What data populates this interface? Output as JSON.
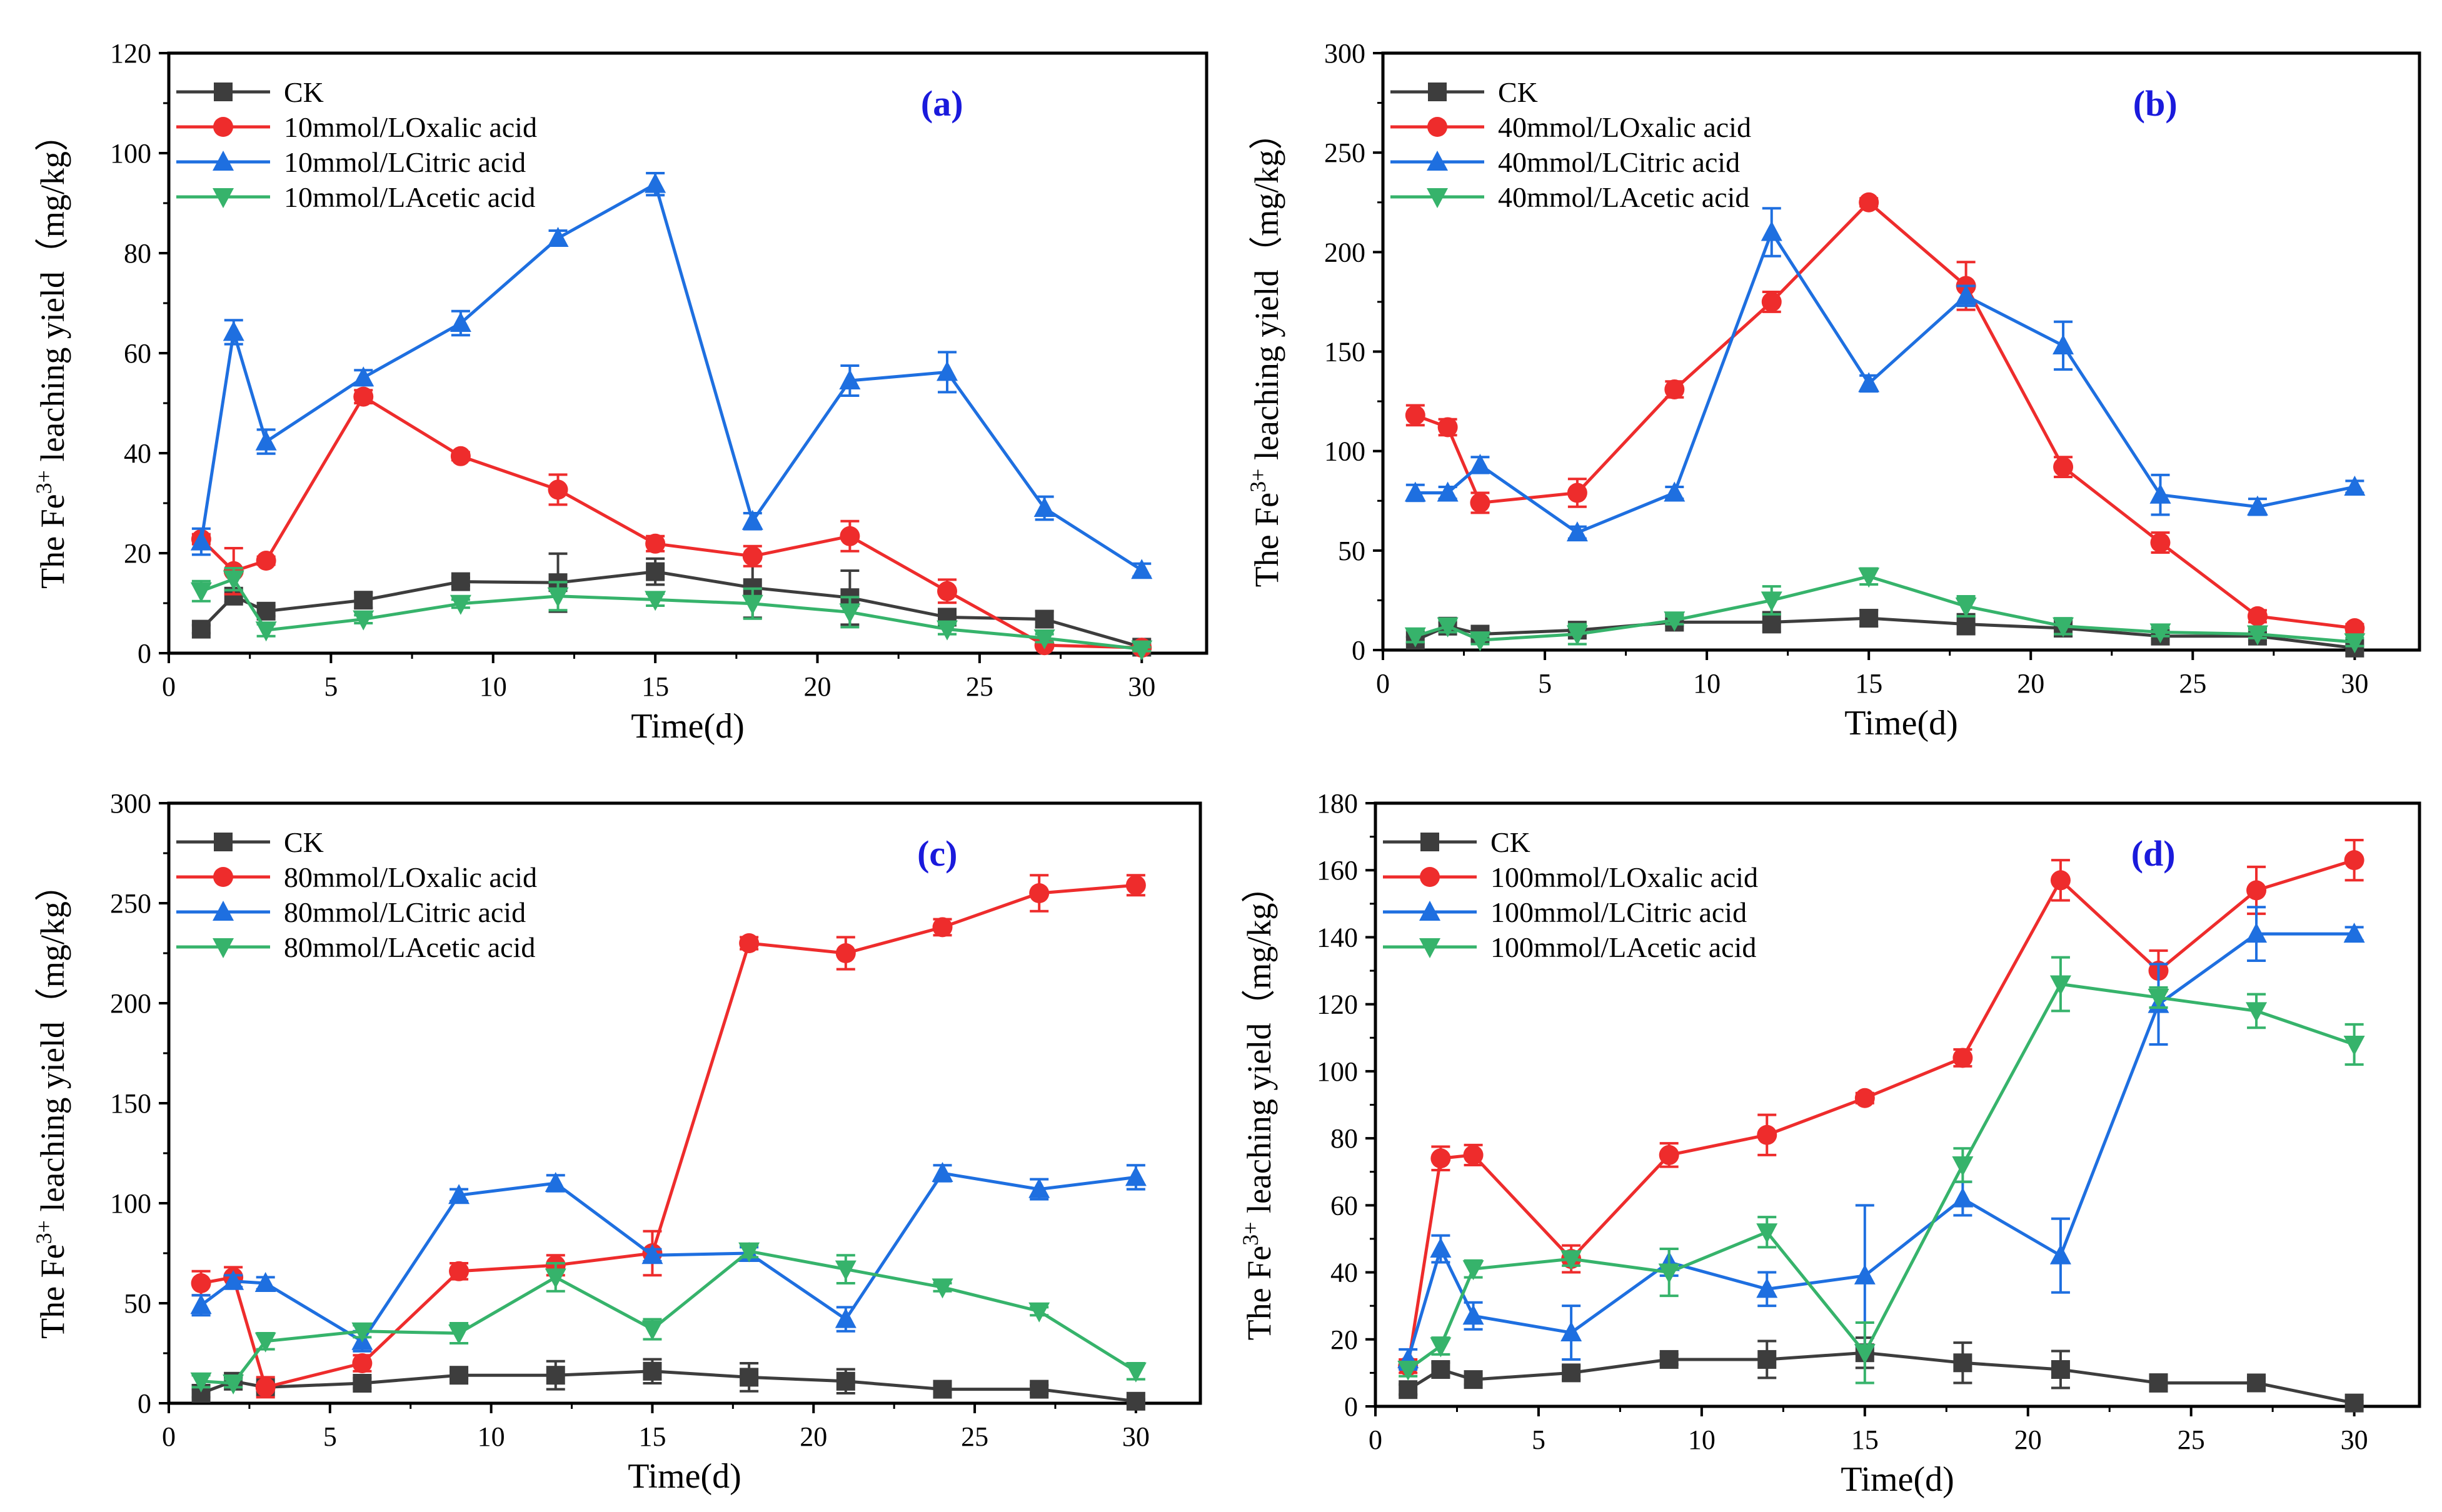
{
  "chart_data": [
    {
      "type": "line",
      "panel_label": "(a)",
      "xlabel": "Time(d)",
      "ylabel": "The Fe",
      "ylabel_sup": "3+",
      "ylabel_tail": " leaching yield（mg/kg）",
      "xlim": [
        0,
        32
      ],
      "ylim": [
        0,
        120
      ],
      "xticks": [
        0,
        5,
        10,
        15,
        20,
        25,
        30
      ],
      "yticks": [
        0,
        20,
        40,
        60,
        80,
        100,
        120
      ],
      "legend_position": "top-left",
      "series": [
        {
          "name": "CK",
          "color": "#3d3d3d",
          "marker": "square",
          "x": [
            1,
            2,
            3,
            6,
            9,
            12,
            15,
            18,
            21,
            24,
            27,
            30
          ],
          "y": [
            4.8,
            11.4,
            8.4,
            10.6,
            14.3,
            14.1,
            16.3,
            13.1,
            11.1,
            7.2,
            6.8,
            1.2
          ],
          "err": [
            0.8,
            1.2,
            1.0,
            1.5,
            0.8,
            5.8,
            2.6,
            6.0,
            5.4,
            1.3,
            1.6,
            0.5
          ]
        },
        {
          "name": "10mmol/LOxalic acid",
          "color": "#ee2c2c",
          "marker": "circle",
          "x": [
            1,
            2,
            3,
            6,
            9,
            12,
            15,
            18,
            21,
            24,
            27,
            30
          ],
          "y": [
            22.8,
            16.4,
            18.5,
            51.3,
            39.4,
            32.7,
            21.9,
            19.4,
            23.4,
            12.4,
            1.6,
            1.1
          ],
          "err": [
            1.0,
            4.6,
            0.8,
            1.3,
            0.8,
            3.0,
            1.5,
            2.0,
            3.0,
            2.3,
            0.5,
            0.4
          ]
        },
        {
          "name": "10mmol/LCitric acid",
          "color": "#1e6fe0",
          "marker": "triangle-up",
          "x": [
            1,
            2,
            3,
            6,
            9,
            12,
            15,
            18,
            21,
            24,
            27,
            30
          ],
          "y": [
            22.3,
            64.2,
            42.3,
            55.1,
            66.0,
            83.0,
            93.8,
            26.4,
            54.5,
            56.2,
            29.0,
            16.6
          ],
          "err": [
            2.6,
            2.4,
            2.4,
            1.5,
            2.4,
            1.5,
            2.2,
            1.6,
            3.0,
            4.0,
            2.3,
            1.3
          ]
        },
        {
          "name": "10mmol/LAcetic acid",
          "color": "#36b36b",
          "marker": "triangle-down",
          "x": [
            1,
            2,
            3,
            6,
            9,
            12,
            15,
            18,
            21,
            24,
            27,
            30
          ],
          "y": [
            12.4,
            14.8,
            4.6,
            6.8,
            9.9,
            11.4,
            10.7,
            9.9,
            8.2,
            4.8,
            3.0,
            0.8
          ],
          "err": [
            2.0,
            2.2,
            1.2,
            0.8,
            0.8,
            2.8,
            1.2,
            3.0,
            3.0,
            1.0,
            0.8,
            0.4
          ]
        }
      ]
    },
    {
      "type": "line",
      "panel_label": "(b)",
      "xlabel": "Time(d)",
      "ylabel": "The Fe",
      "ylabel_sup": "3+",
      "ylabel_tail": " leaching yield（mg/kg）",
      "xlim": [
        0,
        32
      ],
      "ylim": [
        0,
        300
      ],
      "xticks": [
        0,
        5,
        10,
        15,
        20,
        25,
        30
      ],
      "yticks": [
        0,
        50,
        100,
        150,
        200,
        250,
        300
      ],
      "legend_position": "top-left",
      "series": [
        {
          "name": "CK",
          "color": "#3d3d3d",
          "marker": "square",
          "x": [
            1,
            2,
            3,
            6,
            9,
            12,
            15,
            18,
            21,
            24,
            27,
            30
          ],
          "y": [
            5.0,
            12.0,
            8.0,
            10.0,
            14.0,
            14.0,
            16.0,
            13.0,
            11.0,
            7.0,
            7.0,
            1.0
          ],
          "err": [
            1.5,
            2.0,
            1.5,
            2.0,
            1.5,
            5.0,
            4.0,
            5.0,
            4.0,
            2.0,
            2.0,
            1.0
          ]
        },
        {
          "name": "40mmol/LOxalic acid",
          "color": "#ee2c2c",
          "marker": "circle",
          "x": [
            1,
            2,
            3,
            6,
            9,
            12,
            15,
            18,
            21,
            24,
            27,
            30
          ],
          "y": [
            118.0,
            112.0,
            74.0,
            79.0,
            131.0,
            175.0,
            225.0,
            183.0,
            92.0,
            54.0,
            17.0,
            11.0
          ],
          "err": [
            5.0,
            4.0,
            5.0,
            7.0,
            4.0,
            5.0,
            2.0,
            12.0,
            5.0,
            5.0,
            3.0,
            2.0
          ]
        },
        {
          "name": "40mmol/LCitric acid",
          "color": "#1e6fe0",
          "marker": "triangle-up",
          "x": [
            1,
            2,
            3,
            6,
            9,
            12,
            15,
            18,
            21,
            24,
            27,
            30
          ],
          "y": [
            79.0,
            79.0,
            93.0,
            59.0,
            79.0,
            210.0,
            134.0,
            178.0,
            153.0,
            78.0,
            72.0,
            82.0
          ],
          "err": [
            4.0,
            3.0,
            4.0,
            3.0,
            3.0,
            12.0,
            4.0,
            5.0,
            12.0,
            10.0,
            4.0,
            3.0
          ]
        },
        {
          "name": "40mmol/LAcetic acid",
          "color": "#36b36b",
          "marker": "triangle-down",
          "x": [
            1,
            2,
            3,
            6,
            9,
            12,
            15,
            18,
            21,
            24,
            27,
            30
          ],
          "y": [
            7.0,
            12.0,
            5.0,
            8.0,
            15.0,
            25.0,
            37.0,
            22.0,
            12.0,
            9.0,
            8.0,
            4.0
          ],
          "err": [
            3.0,
            3.0,
            2.0,
            5.0,
            2.0,
            7.0,
            4.0,
            5.0,
            4.0,
            2.0,
            2.0,
            2.0
          ]
        }
      ]
    },
    {
      "type": "line",
      "panel_label": "(c)",
      "xlabel": "Time(d)",
      "ylabel": "The Fe",
      "ylabel_sup": "3+",
      "ylabel_tail": " leaching yield（mg/kg）",
      "xlim": [
        0,
        32
      ],
      "ylim": [
        0,
        300
      ],
      "xticks": [
        0,
        5,
        10,
        15,
        20,
        25,
        30
      ],
      "yticks": [
        0,
        50,
        100,
        150,
        200,
        250,
        300
      ],
      "legend_position": "top-left",
      "series": [
        {
          "name": "CK",
          "color": "#3d3d3d",
          "marker": "square",
          "x": [
            1,
            2,
            3,
            6,
            9,
            12,
            15,
            18,
            21,
            24,
            27,
            30
          ],
          "y": [
            5.0,
            11.0,
            8.0,
            10.0,
            14.0,
            14.0,
            16.0,
            13.0,
            11.0,
            7.0,
            7.0,
            1.0
          ],
          "err": [
            2.0,
            2.0,
            2.0,
            2.5,
            2.0,
            7.0,
            6.0,
            7.0,
            6.0,
            2.5,
            2.0,
            1.0
          ]
        },
        {
          "name": "80mmol/LOxalic acid",
          "color": "#ee2c2c",
          "marker": "circle",
          "x": [
            1,
            2,
            3,
            6,
            9,
            12,
            15,
            18,
            21,
            24,
            27,
            30
          ],
          "y": [
            60.0,
            63.0,
            8.0,
            20.0,
            66.0,
            69.0,
            75.0,
            230.0,
            225.0,
            238.0,
            255.0,
            259.0
          ],
          "err": [
            6.0,
            5.0,
            5.0,
            4.0,
            4.0,
            5.0,
            11.0,
            3.0,
            8.0,
            4.0,
            9.0,
            5.0
          ]
        },
        {
          "name": "80mmol/LCitric acid",
          "color": "#1e6fe0",
          "marker": "triangle-up",
          "x": [
            1,
            2,
            3,
            6,
            9,
            12,
            15,
            18,
            21,
            24,
            27,
            30
          ],
          "y": [
            49.0,
            61.0,
            60.0,
            31.0,
            104.0,
            110.0,
            74.0,
            75.0,
            42.0,
            115.0,
            107.0,
            113.0
          ],
          "err": [
            5.0,
            3.0,
            3.0,
            5.0,
            3.0,
            4.0,
            3.0,
            3.0,
            6.0,
            4.0,
            5.0,
            6.0
          ]
        },
        {
          "name": "80mmol/LAcetic acid",
          "color": "#36b36b",
          "marker": "triangle-down",
          "x": [
            1,
            2,
            3,
            6,
            9,
            12,
            15,
            18,
            21,
            24,
            27,
            30
          ],
          "y": [
            11.0,
            10.0,
            31.0,
            36.0,
            35.0,
            63.0,
            37.0,
            76.0,
            67.0,
            58.0,
            46.0,
            16.0
          ],
          "err": [
            3.0,
            2.0,
            4.0,
            3.0,
            5.0,
            7.0,
            5.0,
            3.0,
            7.0,
            2.0,
            2.0,
            4.0
          ]
        }
      ]
    },
    {
      "type": "line",
      "panel_label": "(d)",
      "xlabel": "Time(d)",
      "ylabel": "The Fe",
      "ylabel_sup": "3+",
      "ylabel_tail": " leaching yield（mg/kg）",
      "xlim": [
        0,
        32
      ],
      "ylim": [
        0,
        180
      ],
      "xticks": [
        0,
        5,
        10,
        15,
        20,
        25,
        30
      ],
      "yticks": [
        0,
        20,
        40,
        60,
        80,
        100,
        120,
        140,
        160,
        180
      ],
      "legend_position": "top-left",
      "series": [
        {
          "name": "CK",
          "color": "#3d3d3d",
          "marker": "square",
          "x": [
            1,
            2,
            3,
            6,
            9,
            12,
            15,
            18,
            21,
            24,
            27,
            30
          ],
          "y": [
            5.0,
            11.0,
            8.0,
            10.0,
            14.0,
            14.0,
            16.0,
            13.0,
            11.0,
            7.0,
            7.0,
            1.0
          ],
          "err": [
            1.5,
            2.0,
            1.5,
            2.0,
            1.5,
            5.5,
            4.5,
            6.0,
            5.5,
            2.5,
            1.5,
            0.5
          ]
        },
        {
          "name": "100mmol/LOxalic acid",
          "color": "#ee2c2c",
          "marker": "circle",
          "x": [
            1,
            2,
            3,
            6,
            9,
            12,
            15,
            18,
            21,
            24,
            27,
            30
          ],
          "y": [
            12.0,
            74.0,
            75.0,
            44.0,
            75.0,
            81.0,
            92.0,
            104.0,
            157.0,
            130.0,
            154.0,
            163.0
          ],
          "err": [
            2.0,
            3.5,
            3.0,
            4.0,
            3.5,
            6.0,
            1.5,
            2.5,
            6.0,
            6.0,
            7.0,
            6.0
          ]
        },
        {
          "name": "100mmol/LCitric acid",
          "color": "#1e6fe0",
          "marker": "triangle-up",
          "x": [
            1,
            2,
            3,
            6,
            9,
            12,
            15,
            18,
            21,
            24,
            27,
            30
          ],
          "y": [
            14.0,
            47.0,
            27.0,
            22.0,
            43.0,
            35.0,
            39.0,
            62.0,
            45.0,
            120.0,
            141.0,
            141.0
          ],
          "err": [
            3.0,
            4.0,
            4.0,
            8.0,
            4.0,
            5.0,
            21.0,
            5.0,
            11.0,
            12.0,
            8.0,
            2.0
          ]
        },
        {
          "name": "100mmol/LAcetic acid",
          "color": "#36b36b",
          "marker": "triangle-down",
          "x": [
            1,
            2,
            3,
            6,
            9,
            12,
            15,
            18,
            21,
            24,
            27,
            30
          ],
          "y": [
            11.0,
            18.0,
            41.0,
            44.0,
            40.0,
            52.0,
            16.0,
            72.0,
            126.0,
            122.0,
            118.0,
            108.0
          ],
          "err": [
            2.0,
            2.5,
            2.5,
            2.0,
            7.0,
            4.5,
            9.0,
            5.0,
            8.0,
            3.0,
            5.0,
            6.0
          ]
        }
      ]
    }
  ]
}
